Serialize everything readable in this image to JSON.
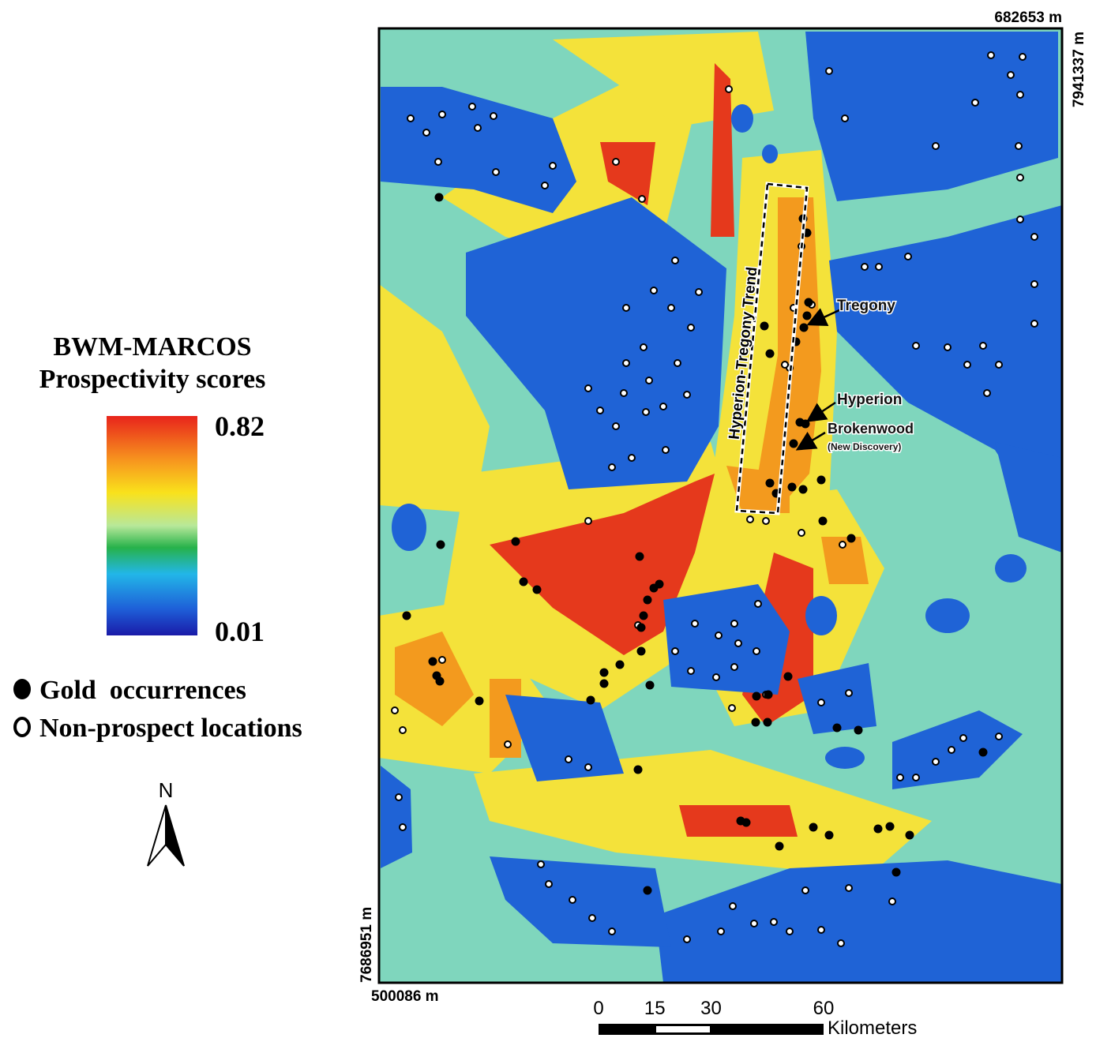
{
  "legend": {
    "title": [
      "BWM-MARCOS",
      "Prospectivity scores"
    ],
    "max": 0.82,
    "min": 0.01,
    "items": [
      "Gold  occurrences",
      "Non-prospect locations"
    ]
  },
  "north_arrow": "N",
  "map": {
    "top_right_x": "682653 m",
    "top_right_y": "7941337 m",
    "bottom_left_y": "7686951 m",
    "bottom_left_x": "500086 m",
    "trend_label": "Hyperion-Tregony Trend",
    "annotations": [
      "Tregony",
      "Hyperion",
      "Brokenwood",
      "(New Discovery)"
    ]
  },
  "scale_bar": {
    "ticks": [
      0,
      15,
      30,
      60
    ],
    "unit": "Kilometers"
  }
}
